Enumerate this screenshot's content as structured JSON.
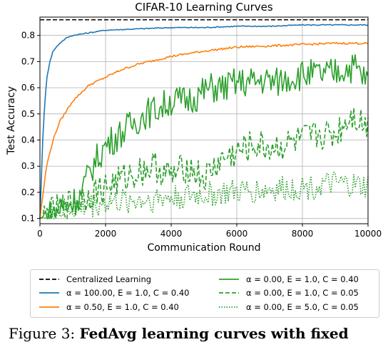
{
  "chart_data": {
    "type": "line",
    "title": "CIFAR-10 Learning Curves",
    "xlabel": "Communication Round",
    "ylabel": "Test Accuracy",
    "xlim": [
      0,
      10000
    ],
    "ylim": [
      0.08,
      0.87
    ],
    "xticks": [
      "0",
      "2000",
      "4000",
      "6000",
      "8000",
      "10000"
    ],
    "yticks": [
      "0.1",
      "0.2",
      "0.3",
      "0.4",
      "0.5",
      "0.6",
      "0.7",
      "0.8"
    ],
    "grid": true,
    "legend_position": "below",
    "series": [
      {
        "name": "Centralized Learning",
        "color": "#000000",
        "style": "dashed",
        "x": [
          0,
          10000
        ],
        "y": [
          0.86,
          0.86
        ]
      },
      {
        "name": "α = 100.00, E = 1.0, C = 0.40",
        "color": "#1f77b4",
        "style": "solid",
        "x": [
          0,
          100,
          200,
          300,
          400,
          600,
          800,
          1000,
          1500,
          2000,
          3000,
          4000,
          5000,
          6000,
          7000,
          8000,
          9000,
          10000
        ],
        "y": [
          0.1,
          0.45,
          0.63,
          0.7,
          0.74,
          0.77,
          0.79,
          0.8,
          0.81,
          0.82,
          0.825,
          0.83,
          0.83,
          0.835,
          0.835,
          0.84,
          0.84,
          0.84
        ]
      },
      {
        "name": "α = 0.50, E = 1.0, C = 0.40",
        "color": "#ff7f0e",
        "style": "solid",
        "x": [
          0,
          100,
          200,
          400,
          600,
          800,
          1000,
          1500,
          2000,
          2500,
          3000,
          4000,
          5000,
          6000,
          7000,
          8000,
          9000,
          10000
        ],
        "y": [
          0.1,
          0.2,
          0.3,
          0.4,
          0.47,
          0.51,
          0.55,
          0.61,
          0.64,
          0.67,
          0.69,
          0.72,
          0.74,
          0.755,
          0.76,
          0.765,
          0.77,
          0.77
        ]
      },
      {
        "name": "α = 0.00, E = 1.0, C = 0.40",
        "color": "#2ca02c",
        "style": "solid",
        "x": [
          0,
          400,
          800,
          1200,
          1600,
          2000,
          2400,
          2800,
          3200,
          3600,
          4000,
          4400,
          4800,
          5200,
          5600,
          6000,
          6400,
          6800,
          7200,
          7600,
          8000,
          8400,
          8800,
          9200,
          9600,
          10000
        ],
        "y": [
          0.1,
          0.12,
          0.15,
          0.18,
          0.3,
          0.38,
          0.42,
          0.46,
          0.5,
          0.52,
          0.55,
          0.55,
          0.57,
          0.6,
          0.6,
          0.62,
          0.62,
          0.63,
          0.62,
          0.64,
          0.65,
          0.65,
          0.65,
          0.67,
          0.68,
          0.62
        ]
      },
      {
        "name": "α = 0.00, E = 1.0, C = 0.05",
        "color": "#2ca02c",
        "style": "dashed",
        "x": [
          0,
          1000,
          2000,
          3000,
          3500,
          4000,
          4500,
          5000,
          5500,
          6000,
          6500,
          7000,
          7500,
          8000,
          8500,
          9000,
          9500,
          10000
        ],
        "y": [
          0.1,
          0.16,
          0.22,
          0.28,
          0.3,
          0.26,
          0.3,
          0.25,
          0.32,
          0.35,
          0.38,
          0.37,
          0.38,
          0.4,
          0.42,
          0.42,
          0.5,
          0.45
        ]
      },
      {
        "name": "α = 0.00, E = 5.0, C = 0.05",
        "color": "#2ca02c",
        "style": "dotted",
        "x": [
          0,
          1000,
          2000,
          3000,
          4000,
          5000,
          6000,
          7000,
          8000,
          9000,
          10000
        ],
        "y": [
          0.1,
          0.14,
          0.16,
          0.17,
          0.18,
          0.19,
          0.2,
          0.21,
          0.22,
          0.23,
          0.22
        ]
      }
    ]
  },
  "caption": {
    "prefix": "Figure 3:",
    "bold_text": "FedAvg learning curves with fixed"
  }
}
